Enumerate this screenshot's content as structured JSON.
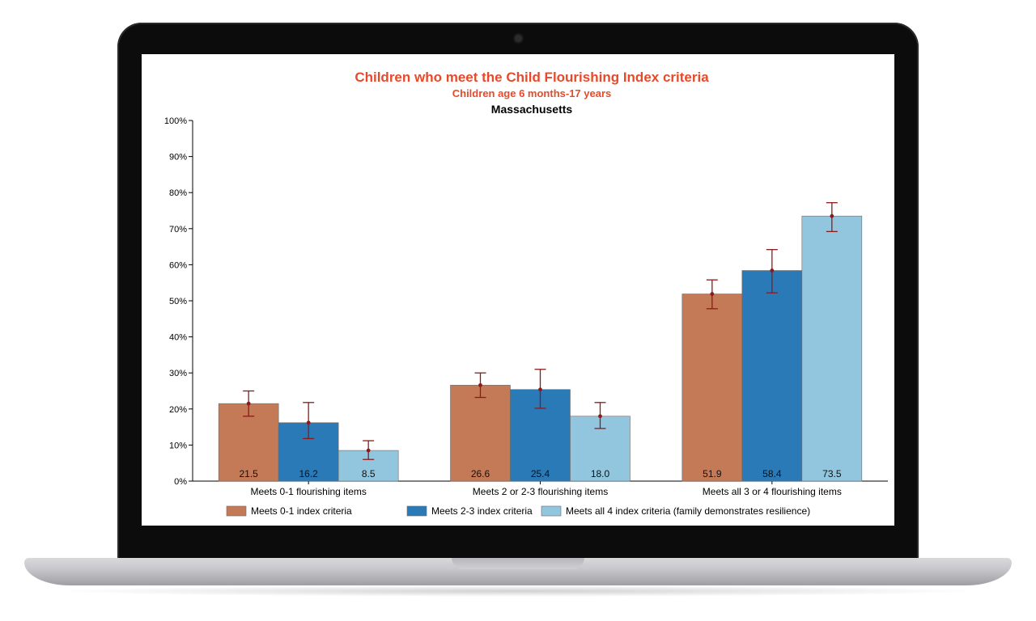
{
  "colors": {
    "series1": "#c47a57",
    "series2": "#2a7ab8",
    "series3": "#92c6df",
    "title": "#e64a2b",
    "error": "#8b1a1a"
  },
  "chart_data": {
    "type": "bar",
    "title": "Children who meet the Child Flourishing Index criteria",
    "subtitle": "Children age 6 months-17 years",
    "region": "Massachusetts",
    "categories": [
      "Meets 0-1 flourishing items",
      "Meets 2 or 2-3 flourishing items",
      "Meets all 3 or 4 flourishing items"
    ],
    "series": [
      {
        "name": "Meets 0-1 index criteria",
        "values": [
          21.5,
          26.6,
          51.9
        ],
        "labels": [
          "21.5",
          "26.6",
          "51.9"
        ],
        "ci_low": [
          18.0,
          23.2,
          47.8
        ],
        "ci_high": [
          25.0,
          30.0,
          55.8
        ]
      },
      {
        "name": "Meets 2-3 index criteria",
        "values": [
          16.2,
          25.4,
          58.4
        ],
        "labels": [
          "16.2",
          "25.4",
          "58.4"
        ],
        "ci_low": [
          11.8,
          20.2,
          52.2
        ],
        "ci_high": [
          21.8,
          31.0,
          64.2
        ]
      },
      {
        "name": "Meets all 4 index criteria (family demonstrates resilience)",
        "values": [
          8.5,
          18.0,
          73.5
        ],
        "labels": [
          "8.5",
          "18.0",
          "73.5"
        ],
        "ci_low": [
          6.0,
          14.6,
          69.2
        ],
        "ci_high": [
          11.2,
          21.8,
          77.2
        ]
      }
    ],
    "ylim": [
      0,
      100
    ],
    "yticks": [
      "0%",
      "10%",
      "20%",
      "30%",
      "40%",
      "50%",
      "60%",
      "70%",
      "80%",
      "90%",
      "100%"
    ],
    "legend_position": "bottom",
    "grid": false
  }
}
